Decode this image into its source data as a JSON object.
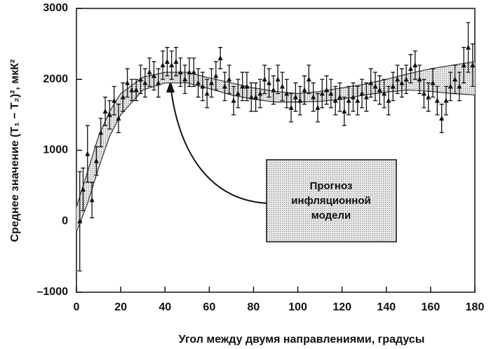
{
  "chart_data": {
    "type": "errorbar",
    "xlabel": "Угол между двумя направлениями, градусы",
    "ylabel": "Среднее значение (T₁ − T₂)², мкК²",
    "annotation": [
      "Прогноз",
      "инфляционной",
      "модели"
    ],
    "xlim": [
      0,
      180
    ],
    "ylim": [
      -1000,
      3000
    ],
    "xticks": [
      0,
      20,
      40,
      60,
      80,
      100,
      120,
      140,
      160,
      180
    ],
    "yticks": [
      {
        "value": -1000,
        "label": "–1000"
      },
      0,
      1000,
      2000,
      3000
    ],
    "color": "#111111",
    "band_color": "#cfcfcf",
    "x": [
      1.5,
      3,
      5,
      7,
      9,
      11,
      13,
      15,
      17,
      19,
      21,
      23,
      25,
      27,
      29,
      31,
      33,
      35,
      37,
      39,
      41,
      43,
      45,
      47,
      49,
      51,
      53,
      55,
      57,
      59,
      61,
      63,
      65,
      67,
      69,
      71,
      73,
      75,
      77,
      79,
      81,
      83,
      85,
      87,
      89,
      91,
      93,
      95,
      97,
      99,
      101,
      103,
      105,
      107,
      109,
      111,
      113,
      115,
      117,
      119,
      121,
      123,
      125,
      127,
      129,
      131,
      133,
      135,
      137,
      139,
      141,
      143,
      145,
      147,
      149,
      151,
      153,
      155,
      157,
      159,
      161,
      163,
      165,
      167,
      169,
      171,
      173,
      175,
      177,
      179
    ],
    "values": [
      0,
      450,
      950,
      300,
      850,
      1250,
      1550,
      1500,
      1700,
      1450,
      1750,
      1950,
      1850,
      1850,
      2000,
      1950,
      2100,
      2050,
      1950,
      2200,
      2250,
      2200,
      2250,
      2100,
      2000,
      2100,
      2100,
      1950,
      1900,
      1800,
      1950,
      2050,
      2300,
      1900,
      2000,
      1700,
      1800,
      1900,
      1900,
      1750,
      1750,
      1800,
      2000,
      1950,
      1850,
      2000,
      1900,
      1800,
      1600,
      1750,
      1700,
      1850,
      2000,
      1750,
      1600,
      1800,
      1850,
      1800,
      1700,
      1750,
      1550,
      1700,
      1750,
      1700,
      1800,
      1750,
      1950,
      1900,
      1850,
      1800,
      1700,
      1900,
      2000,
      1950,
      2000,
      2150,
      2200,
      2000,
      1800,
      1750,
      1950,
      1700,
      1450,
      1700,
      1900,
      2000,
      1900,
      2200,
      2450,
      2200
    ],
    "errors": [
      700,
      300,
      400,
      250,
      200,
      200,
      200,
      200,
      200,
      200,
      200,
      200,
      150,
      150,
      200,
      200,
      200,
      200,
      200,
      200,
      200,
      200,
      200,
      200,
      200,
      200,
      200,
      200,
      200,
      200,
      200,
      200,
      150,
      200,
      200,
      200,
      200,
      200,
      200,
      200,
      200,
      200,
      200,
      200,
      200,
      200,
      200,
      200,
      200,
      200,
      200,
      200,
      200,
      200,
      200,
      200,
      200,
      200,
      200,
      200,
      200,
      200,
      200,
      200,
      200,
      200,
      200,
      200,
      200,
      200,
      200,
      200,
      200,
      200,
      200,
      200,
      200,
      200,
      200,
      200,
      200,
      200,
      200,
      200,
      200,
      200,
      200,
      250,
      350,
      300
    ],
    "band": {
      "x": [
        0,
        5,
        10,
        15,
        20,
        30,
        40,
        50,
        60,
        70,
        80,
        90,
        100,
        110,
        120,
        130,
        140,
        150,
        160,
        170,
        180
      ],
      "upper": [
        200,
        700,
        1200,
        1550,
        1800,
        2030,
        2100,
        2100,
        2020,
        1950,
        1880,
        1830,
        1800,
        1830,
        1880,
        1930,
        2000,
        2080,
        2150,
        2200,
        2250
      ],
      "lower": [
        -150,
        250,
        750,
        1200,
        1500,
        1850,
        1950,
        1950,
        1870,
        1780,
        1720,
        1680,
        1680,
        1690,
        1720,
        1780,
        1820,
        1850,
        1830,
        1800,
        1780
      ]
    }
  }
}
